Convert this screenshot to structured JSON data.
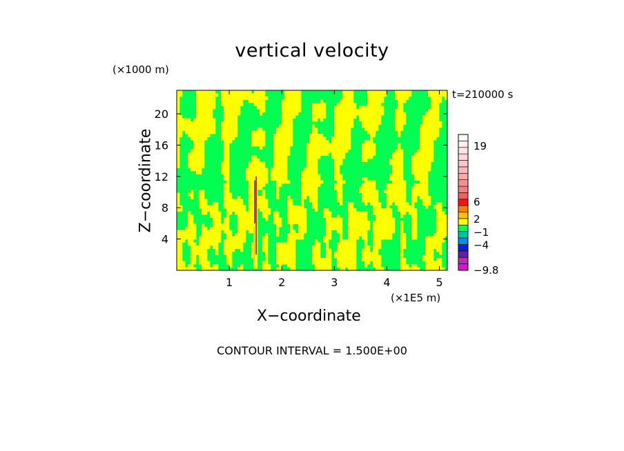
{
  "chart_data": {
    "type": "heatmap",
    "title": "vertical velocity",
    "xlabel": "X−coordinate",
    "ylabel": "Z−coordinate",
    "x_scale_note": "(×1E5 m)",
    "y_scale_note": "(×1000 m)",
    "time_label": "t=210000 s",
    "footer": "CONTOUR INTERVAL = 1.500E+00",
    "xlim": [
      0,
      5.15
    ],
    "ylim": [
      0,
      23
    ],
    "x_ticks": [
      1,
      2,
      3,
      4,
      5
    ],
    "x_tick_labels": [
      "1",
      "2",
      "3",
      "4",
      "5"
    ],
    "y_ticks": [
      4,
      8,
      12,
      16,
      20
    ],
    "y_tick_labels": [
      "4",
      "8",
      "12",
      "16",
      "20"
    ],
    "colorbar": {
      "levels": [
        -9.8,
        -8.3,
        -6.8,
        -5.3,
        -3.8,
        -2.3,
        -0.8,
        0.7,
        2.2,
        3.7,
        5.2,
        6.7,
        8.2,
        9.7,
        11.2,
        12.7,
        14.2,
        15.7,
        17.2,
        18.7,
        20.2,
        21.7
      ],
      "colors": [
        "#e010d0",
        "#b030b0",
        "#6020a0",
        "#1020d0",
        "#0090f0",
        "#00c0a0",
        "#00ff50",
        "#ffff00",
        "#ffc000",
        "#ff8000",
        "#ff1010",
        "#f06060",
        "#f08080",
        "#f09090",
        "#f8a8a8",
        "#f8b8b8",
        "#f8c8c8",
        "#fcd8d8",
        "#fde4e4",
        "#feeeee",
        "#fff6f6"
      ],
      "tick_labels": [
        "19",
        "6",
        "2",
        "−1",
        "−4",
        "−9.8"
      ],
      "tick_values": [
        19,
        6,
        2,
        -1,
        -4,
        -9.8
      ]
    },
    "field_colors": {
      "positive": "#ffff00",
      "negative": "#00ff50",
      "updraft_core": "#c01010",
      "downdraft_core": "#6020a0"
    },
    "field_summary": "alternating weak up/down bands; tall narrow updraft/downdraft column near x=1.5"
  }
}
